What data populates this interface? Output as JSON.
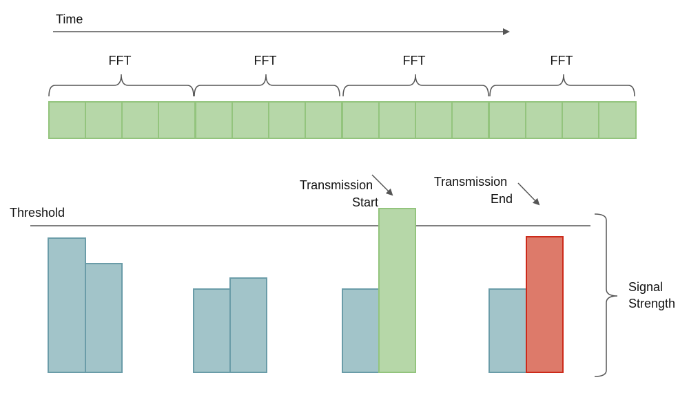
{
  "time_label": "Time",
  "fft_label": "FFT",
  "threshold_label": "Threshold",
  "transmission_start": [
    "Transmission",
    "Start"
  ],
  "transmission_end": [
    "Transmission",
    "End"
  ],
  "signal_strength": [
    "Signal",
    "Strength"
  ],
  "window_count": 4,
  "bins_per_window": 4,
  "colors": {
    "bin_fill": "#b6d7a8",
    "bin_stroke": "#93c47d",
    "noise_fill": "#a2c4c9",
    "noise_stroke": "#6a9ca8",
    "start_fill": "#b6d7a8",
    "start_stroke": "#93c47d",
    "end_fill": "#dd7a6a",
    "end_stroke": "#cc2a1a",
    "line": "#555555"
  }
}
